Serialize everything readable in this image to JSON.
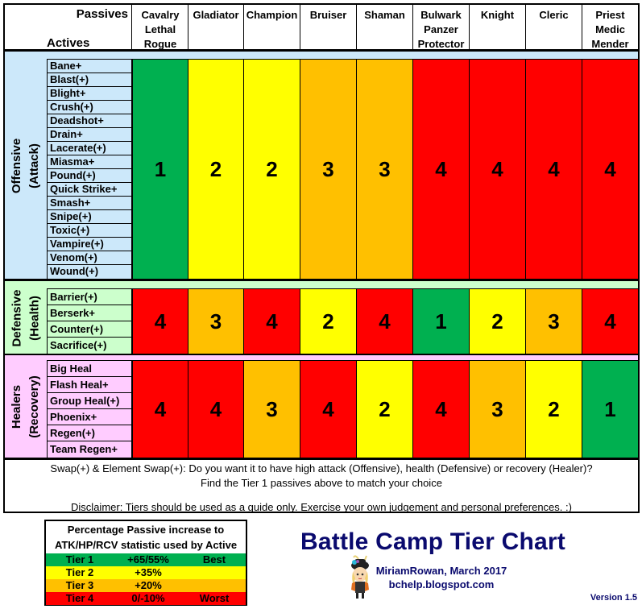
{
  "header": {
    "passives_label": "Passives",
    "actives_label": "Actives",
    "columns": [
      {
        "lines": [
          "Cavalry",
          "Lethal",
          "Rogue"
        ]
      },
      {
        "lines": [
          "Gladiator"
        ]
      },
      {
        "lines": [
          "Champion"
        ]
      },
      {
        "lines": [
          "Bruiser"
        ]
      },
      {
        "lines": [
          "Shaman"
        ]
      },
      {
        "lines": [
          "Bulwark",
          "Panzer",
          "Protector"
        ]
      },
      {
        "lines": [
          "Knight"
        ]
      },
      {
        "lines": [
          "Cleric"
        ]
      },
      {
        "lines": [
          "Priest",
          "Medic",
          "Mender"
        ]
      }
    ]
  },
  "tier_colors": {
    "1": "#00b050",
    "2": "#ffff00",
    "3": "#ffc000",
    "4": "#ff0000"
  },
  "sections": [
    {
      "name": "Offensive",
      "sub": "(Attack)",
      "bg": "#cce8fa",
      "actives": [
        "Bane+",
        "Blast(+)",
        "Blight+",
        "Crush(+)",
        "Deadshot+",
        "Drain+",
        "Lacerate(+)",
        "Miasma+",
        "Pound(+)",
        "Quick Strike+",
        "Smash+",
        "Snipe(+)",
        "Toxic(+)",
        "Vampire(+)",
        "Venom(+)",
        "Wound(+)"
      ],
      "tiers": [
        "1",
        "2",
        "2",
        "3",
        "3",
        "4",
        "4",
        "4",
        "4"
      ]
    },
    {
      "name": "Defensive",
      "sub": "(Health)",
      "bg": "#ccffcc",
      "actives": [
        "Barrier(+)",
        "Berserk+",
        "Counter(+)",
        "Sacrifice(+)"
      ],
      "tiers": [
        "4",
        "3",
        "4",
        "2",
        "4",
        "1",
        "2",
        "3",
        "4"
      ]
    },
    {
      "name": "Healers",
      "sub": "(Recovery)",
      "bg": "#ffccff",
      "actives": [
        "Big Heal",
        "Flash Heal+",
        "Group Heal(+)",
        "Phoenix+",
        "Regen(+)",
        "Team Regen+"
      ],
      "tiers": [
        "4",
        "4",
        "3",
        "4",
        "2",
        "4",
        "3",
        "2",
        "1"
      ]
    }
  ],
  "notes": {
    "line1": "Swap(+) & Element Swap(+): Do you want it to have high attack (Offensive), health (Defensive) or recovery (Healer)?",
    "line2": "Find the Tier 1 passives above to match your choice",
    "line3": "Disclaimer: Tiers should be used as a guide only. Exercise your own judgement and personal preferences. :)"
  },
  "legend": {
    "title_line1": "Percentage Passive increase to",
    "title_line2": "ATK/HP/RCV statistic used by Active",
    "rows": [
      {
        "tier": "Tier 1",
        "value": "+65/55%",
        "note": "Best",
        "color": "#00b050"
      },
      {
        "tier": "Tier 2",
        "value": "+35%",
        "note": "",
        "color": "#ffff00"
      },
      {
        "tier": "Tier 3",
        "value": "+20%",
        "note": "",
        "color": "#ffc000"
      },
      {
        "tier": "Tier 4",
        "value": "0/-10%",
        "note": "Worst",
        "color": "#ff0000"
      }
    ]
  },
  "title": "Battle Camp Tier Chart",
  "byline": {
    "author": "MiriamRowan, March 2017",
    "site": "bchelp.blogspot.com"
  },
  "version": "Version 1.5",
  "chart_data": {
    "type": "table",
    "title": "Battle Camp Tier Chart",
    "xlabel": "Passives",
    "ylabel": "Actives",
    "columns": [
      "Cavalry/Lethal/Rogue",
      "Gladiator",
      "Champion",
      "Bruiser",
      "Shaman",
      "Bulwark/Panzer/Protector",
      "Knight",
      "Cleric",
      "Priest/Medic/Mender"
    ],
    "rows": [
      {
        "category": "Offensive (Attack)",
        "actives": [
          "Bane+",
          "Blast(+)",
          "Blight+",
          "Crush(+)",
          "Deadshot+",
          "Drain+",
          "Lacerate(+)",
          "Miasma+",
          "Pound(+)",
          "Quick Strike+",
          "Smash+",
          "Snipe(+)",
          "Toxic(+)",
          "Vampire(+)",
          "Venom(+)",
          "Wound(+)"
        ],
        "tiers": [
          1,
          2,
          2,
          3,
          3,
          4,
          4,
          4,
          4
        ]
      },
      {
        "category": "Defensive (Health)",
        "actives": [
          "Barrier(+)",
          "Berserk+",
          "Counter(+)",
          "Sacrifice(+)"
        ],
        "tiers": [
          4,
          3,
          4,
          2,
          4,
          1,
          2,
          3,
          4
        ]
      },
      {
        "category": "Healers (Recovery)",
        "actives": [
          "Big Heal",
          "Flash Heal+",
          "Group Heal(+)",
          "Phoenix+",
          "Regen(+)",
          "Team Regen+"
        ],
        "tiers": [
          4,
          4,
          3,
          4,
          2,
          4,
          3,
          2,
          1
        ]
      }
    ],
    "legend": [
      {
        "tier": 1,
        "increase": "+65/55%",
        "label": "Best",
        "color": "#00b050"
      },
      {
        "tier": 2,
        "increase": "+35%",
        "label": "",
        "color": "#ffff00"
      },
      {
        "tier": 3,
        "increase": "+20%",
        "label": "",
        "color": "#ffc000"
      },
      {
        "tier": 4,
        "increase": "0/-10%",
        "label": "Worst",
        "color": "#ff0000"
      }
    ]
  }
}
